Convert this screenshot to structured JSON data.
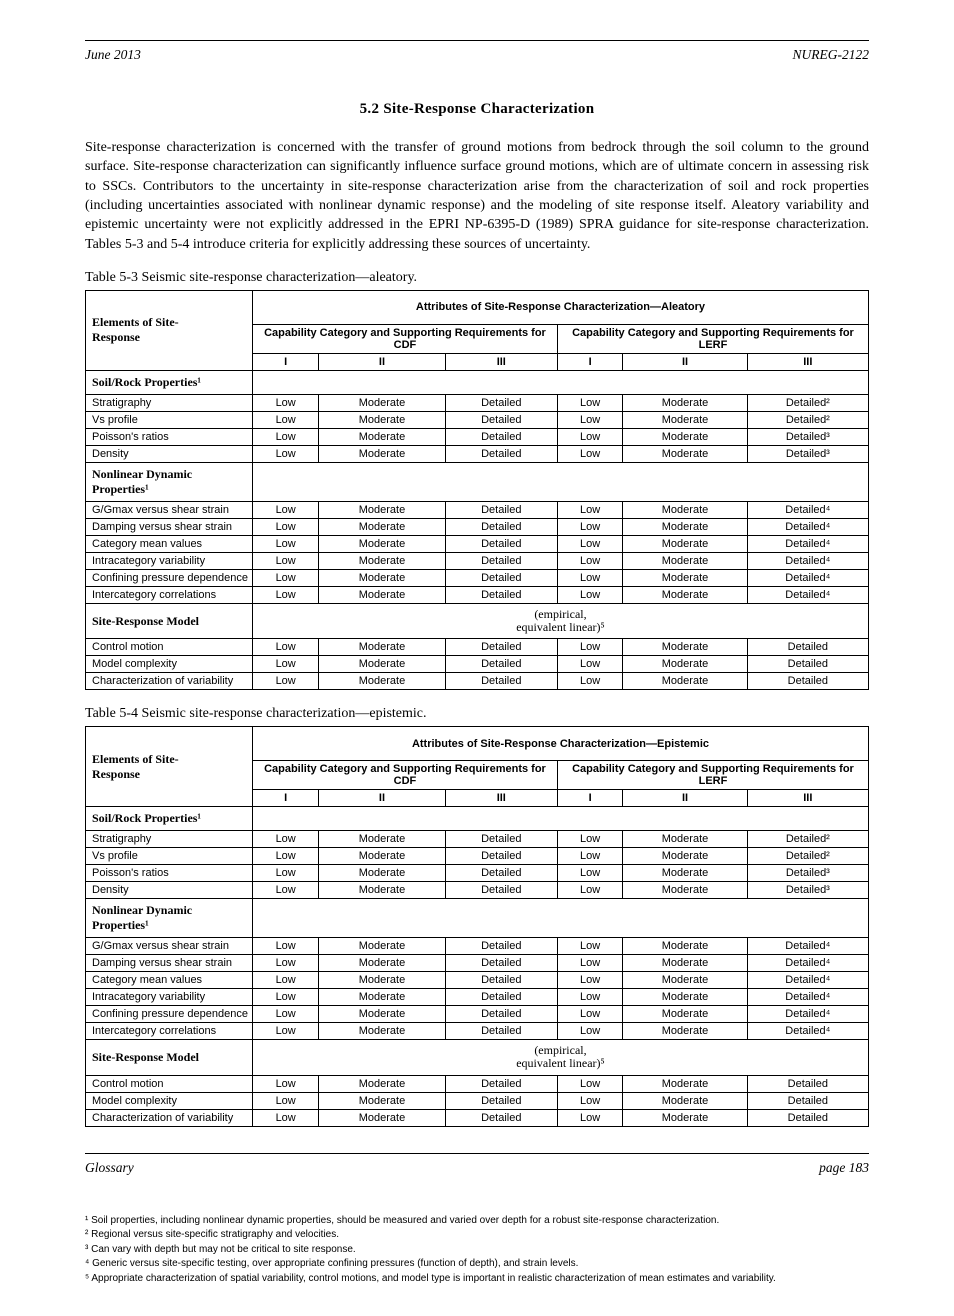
{
  "header": {
    "left": "June 2013",
    "right": "NUREG-2122"
  },
  "section_heading": "5.2  Site-Response Characterization",
  "paragraph": "Site-response characterization is concerned with the transfer of ground motions from bedrock through the soil column to the ground surface. Site-response characterization can significantly influence surface ground motions, which are of ultimate concern in assessing risk to SSCs. Contributors to the uncertainty in site-response characterization arise from the characterization of soil and rock properties (including uncertainties associated with nonlinear dynamic response) and the modeling of site response itself. Aleatory variability and epistemic uncertainty were not explicitly addressed in the EPRI NP-6395-D (1989) SPRA guidance for site-response characterization. Tables 5-3 and 5-4 introduce criteria for explicitly addressing these sources of uncertainty.",
  "table3": {
    "caption": "Table 5-3 Seismic site-response characterization—aleatory.",
    "top_header": "Attributes of Site-Response Characterization—Aleatory",
    "col1_head_line1": "Elements of Site-",
    "col1_head_line2": "Response",
    "cdf_header": "Capability Category and Supporting Requirements for CDF",
    "lerf_header": "Capability Category and Supporting Requirements for LERF",
    "levels": [
      "I",
      "II",
      "III"
    ],
    "groups": [
      {
        "label": "Soil/Rock Properties¹",
        "rows": [
          {
            "label": "Stratigraphy",
            "cells": [
              "Low",
              "Moderate",
              "Detailed",
              "Low",
              "Moderate",
              "Detailed"
            ],
            "suffix": "²"
          },
          {
            "label": "Vs profile",
            "cells": [
              "Low",
              "Moderate",
              "Detailed",
              "Low",
              "Moderate",
              "Detailed"
            ],
            "suffix": "²"
          },
          {
            "label": "Poisson's ratios",
            "cells": [
              "Low",
              "Moderate",
              "Detailed",
              "Low",
              "Moderate",
              "Detailed"
            ],
            "suffix": "³"
          },
          {
            "label": "Density",
            "cells": [
              "Low",
              "Moderate",
              "Detailed",
              "Low",
              "Moderate",
              "Detailed"
            ],
            "suffix": "³"
          }
        ]
      },
      {
        "label": "Nonlinear Dynamic Properties¹",
        "rows": [
          {
            "label": "G/Gmax versus shear strain",
            "cells": [
              "Low",
              "Moderate",
              "Detailed",
              "Low",
              "Moderate",
              "Detailed"
            ],
            "suffix": "⁴"
          },
          {
            "label": "Damping versus shear strain",
            "cells": [
              "Low",
              "Moderate",
              "Detailed",
              "Low",
              "Moderate",
              "Detailed"
            ],
            "suffix": "⁴"
          },
          {
            "label": "Category mean values",
            "cells": [
              "Low",
              "Moderate",
              "Detailed",
              "Low",
              "Moderate",
              "Detailed"
            ],
            "suffix": "⁴"
          },
          {
            "label": "Intracategory variability",
            "cells": [
              "Low",
              "Moderate",
              "Detailed",
              "Low",
              "Moderate",
              "Detailed"
            ],
            "suffix": "⁴"
          },
          {
            "label": "Confining pressure dependence",
            "cells": [
              "Low",
              "Moderate",
              "Detailed",
              "Low",
              "Moderate",
              "Detailed"
            ],
            "suffix": "⁴"
          },
          {
            "label": "Intercategory correlations",
            "cells": [
              "Low",
              "Moderate",
              "Detailed",
              "Low",
              "Moderate",
              "Detailed"
            ],
            "suffix": "⁴"
          }
        ]
      },
      {
        "label": "Site-Response Model",
        "sublabel_line1": "(empirical,",
        "sublabel_line2": "equivalent linear)⁵",
        "rows": [
          {
            "label": "Control motion",
            "cells": [
              "Low",
              "Moderate",
              "Detailed",
              "Low",
              "Moderate",
              "Detailed"
            ],
            "suffix": ""
          },
          {
            "label": "Model complexity",
            "cells": [
              "Low",
              "Moderate",
              "Detailed",
              "Low",
              "Moderate",
              "Detailed"
            ],
            "suffix": ""
          },
          {
            "label": "Characterization of variability",
            "cells": [
              "Low",
              "Moderate",
              "Detailed",
              "Low",
              "Moderate",
              "Detailed"
            ],
            "suffix": ""
          }
        ]
      }
    ]
  },
  "table4": {
    "caption": "Table 5-4 Seismic site-response characterization—epistemic.",
    "top_header": "Attributes of Site-Response Characterization—Epistemic",
    "col1_head_line1": "Elements of Site-",
    "col1_head_line2": "Response",
    "cdf_header": "Capability Category and Supporting Requirements for CDF",
    "lerf_header": "Capability Category and Supporting Requirements for LERF",
    "levels": [
      "I",
      "II",
      "III"
    ],
    "groups": [
      {
        "label": "Soil/Rock Properties¹",
        "rows": [
          {
            "label": "Stratigraphy",
            "cells": [
              "Low",
              "Moderate",
              "Detailed",
              "Low",
              "Moderate",
              "Detailed"
            ],
            "suffix": "²"
          },
          {
            "label": "Vs profile",
            "cells": [
              "Low",
              "Moderate",
              "Detailed",
              "Low",
              "Moderate",
              "Detailed"
            ],
            "suffix": "²"
          },
          {
            "label": "Poisson's ratios",
            "cells": [
              "Low",
              "Moderate",
              "Detailed",
              "Low",
              "Moderate",
              "Detailed"
            ],
            "suffix": "³"
          },
          {
            "label": "Density",
            "cells": [
              "Low",
              "Moderate",
              "Detailed",
              "Low",
              "Moderate",
              "Detailed"
            ],
            "suffix": "³"
          }
        ]
      },
      {
        "label": "Nonlinear Dynamic Properties¹",
        "rows": [
          {
            "label": "G/Gmax versus shear strain",
            "cells": [
              "Low",
              "Moderate",
              "Detailed",
              "Low",
              "Moderate",
              "Detailed"
            ],
            "suffix": "⁴"
          },
          {
            "label": "Damping versus shear strain",
            "cells": [
              "Low",
              "Moderate",
              "Detailed",
              "Low",
              "Moderate",
              "Detailed"
            ],
            "suffix": "⁴"
          },
          {
            "label": "Category mean values",
            "cells": [
              "Low",
              "Moderate",
              "Detailed",
              "Low",
              "Moderate",
              "Detailed"
            ],
            "suffix": "⁴"
          },
          {
            "label": "Intracategory variability",
            "cells": [
              "Low",
              "Moderate",
              "Detailed",
              "Low",
              "Moderate",
              "Detailed"
            ],
            "suffix": "⁴"
          },
          {
            "label": "Confining pressure dependence",
            "cells": [
              "Low",
              "Moderate",
              "Detailed",
              "Low",
              "Moderate",
              "Detailed"
            ],
            "suffix": "⁴"
          },
          {
            "label": "Intercategory correlations",
            "cells": [
              "Low",
              "Moderate",
              "Detailed",
              "Low",
              "Moderate",
              "Detailed"
            ],
            "suffix": "⁴"
          }
        ]
      },
      {
        "label": "Site-Response Model",
        "sublabel_line1": "(empirical,",
        "sublabel_line2": "equivalent linear)⁵",
        "rows": [
          {
            "label": "Control motion",
            "cells": [
              "Low",
              "Moderate",
              "Detailed",
              "Low",
              "Moderate",
              "Detailed"
            ],
            "suffix": ""
          },
          {
            "label": "Model complexity",
            "cells": [
              "Low",
              "Moderate",
              "Detailed",
              "Low",
              "Moderate",
              "Detailed"
            ],
            "suffix": ""
          },
          {
            "label": "Characterization of variability",
            "cells": [
              "Low",
              "Moderate",
              "Detailed",
              "Low",
              "Moderate",
              "Detailed"
            ],
            "suffix": ""
          }
        ]
      }
    ]
  },
  "footnotes": [
    "¹ Soil properties, including nonlinear dynamic properties, should be measured and varied over depth for a robust site-response characterization.",
    "² Regional versus site-specific stratigraphy and velocities.",
    "³ Can vary with depth but may not be critical to site response.",
    "⁴ Generic versus site-specific testing, over appropriate confining pressures (function of depth), and strain levels.",
    "⁵ Appropriate characterization of spatial variability, control motions, and model type is important in realistic characterization of mean estimates and variability."
  ],
  "footer": {
    "left": "Glossary",
    "right": "page 183"
  },
  "style": {
    "background_color": "#ffffff",
    "text_color": "#000000",
    "border_color": "#000000",
    "body_font": "Times New Roman",
    "table_font": "Arial",
    "section_fontsize_pt": 15,
    "body_fontsize_pt": 14,
    "table_fontsize_pt": 11,
    "footnote_fontsize_pt": 10
  }
}
